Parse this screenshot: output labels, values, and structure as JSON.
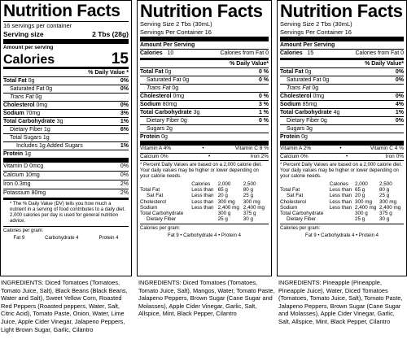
{
  "panel1": {
    "title": "Nutrition Facts",
    "servings": "16 servings per container",
    "serving_size_label": "Serving size",
    "serving_size_value": "2 Tbs (28g)",
    "amount_per_serving": "Amount per serving",
    "calories_label": "Calories",
    "calories_value": "15",
    "dv_header": "% Daily Value *",
    "nutrients": [
      {
        "label": "Total Fat",
        "amount": "0g",
        "dv": "0%",
        "bold": true,
        "indent": 0
      },
      {
        "label": "Saturated Fat",
        "amount": "0g",
        "dv": "0%",
        "bold": false,
        "indent": 1
      },
      {
        "label": "Trans Fat",
        "amount": "0g",
        "dv": "",
        "bold": false,
        "indent": 1,
        "italic": true
      },
      {
        "label": "Cholesterol",
        "amount": "0mg",
        "dv": "0%",
        "bold": true,
        "indent": 0
      },
      {
        "label": "Sodium",
        "amount": "70mg",
        "dv": "3%",
        "bold": true,
        "indent": 0
      },
      {
        "label": "Total Carbohydrate",
        "amount": "3g",
        "dv": "1%",
        "bold": true,
        "indent": 0
      },
      {
        "label": "Dietary Fiber",
        "amount": "1g",
        "dv": "6%",
        "bold": false,
        "indent": 1
      },
      {
        "label": "Total Sugars",
        "amount": "1g",
        "dv": "",
        "bold": false,
        "indent": 1
      },
      {
        "label": "Includes 1g Added Sugars",
        "amount": "",
        "dv": "1%",
        "bold": false,
        "indent": 2
      },
      {
        "label": "Protein",
        "amount": "1g",
        "dv": "",
        "bold": true,
        "indent": 0
      }
    ],
    "vitamins": [
      {
        "label": "Vitamin D",
        "amount": "0mcg",
        "dv": "0%"
      },
      {
        "label": "Calcium",
        "amount": "10mg",
        "dv": "0%"
      },
      {
        "label": "Iron",
        "amount": "0.3mg",
        "dv": "2%"
      },
      {
        "label": "Potassium",
        "amount": "80mg",
        "dv": "2%"
      }
    ],
    "footnote": "* The % Daily Value (DV) tells you how much a nutrient in a serving of food contributes to a daily diet. 2,000 calories per day is used for general nutrition advice.",
    "cal_per_gram_label": "Calories per gram:",
    "cal_per_gram": [
      "Fat 9",
      "Carbohydrate 4",
      "Protein 4"
    ],
    "ingredients_lead": "INGREDIENTS:",
    "ingredients": "Diced Tomatoes (Tomatoes, Tomato Juice, Salt), Black Beans (Black Beans, Water and Salt), Sweet Yellow Corn, Roasted Red Peppers (Roasted peppers, Water, Salt, Citric Acid), Tomato Paste, Onion, Water, Lime Juice, Apple Cider Vinegar, Jalapeno Peppers, Light Brown Sugar, Garlic, Cilantro"
  },
  "panel2": {
    "title": "Nutrition Facts",
    "serving_size": "Serving Size  2  Tbs  (30mL)",
    "servings": "Servings Per Container  16",
    "amount_per_serving": "Amount Per Serving",
    "calories_label": "Calories",
    "calories_value": "10",
    "calories_fat": "Calories from Fat  0",
    "dv_header": "% Daily Value*",
    "nutrients": [
      {
        "label": "Total Fat",
        "amount": "0g",
        "dv": "0 %",
        "bold": true,
        "indent": 0
      },
      {
        "label": "Saturated Fat",
        "amount": "0g",
        "dv": "0 %",
        "bold": false,
        "indent": 1
      },
      {
        "label": "Trans Fat",
        "amount": "0g",
        "dv": "",
        "bold": false,
        "indent": 1,
        "italic": true
      },
      {
        "label": "Cholesterol",
        "amount": "0mg",
        "dv": "0 %",
        "bold": true,
        "indent": 0
      },
      {
        "label": "Sodium",
        "amount": "80mg",
        "dv": "3 %",
        "bold": true,
        "indent": 0
      },
      {
        "label": "Total Carbohydrate",
        "amount": "3g",
        "dv": "1 %",
        "bold": true,
        "indent": 0
      },
      {
        "label": "Dietary Fiber",
        "amount": "0g",
        "dv": "0 %",
        "bold": false,
        "indent": 1
      },
      {
        "label": "Sugars",
        "amount": "2g",
        "dv": "",
        "bold": false,
        "indent": 1
      },
      {
        "label": "Protein",
        "amount": "0g",
        "dv": "",
        "bold": true,
        "indent": 0
      }
    ],
    "vitamins": [
      {
        "left": "Vitamin A  4%",
        "right": "Vitamin C  8 %"
      },
      {
        "left": "Calcium  0%",
        "right": "Iron  2%"
      }
    ],
    "footnote": "* Percent Daily Values are based on a 2,000 calorie diet. Your daily values may be higher or lower depending on your calorie needs.",
    "ref_header": [
      "Calories",
      "2,000",
      "2,500"
    ],
    "ref_rows": [
      [
        "Total Fat",
        "Less than",
        "65 g",
        "80 g"
      ],
      [
        "Sat Fat",
        "Less than",
        "20 g",
        "25 g"
      ],
      [
        "Cholesterol",
        "Less than",
        "300 mg",
        "300 mg"
      ],
      [
        "Sodium",
        "Less than",
        "2,400 mg",
        "2,400 mg"
      ],
      [
        "Total Carbohydrate",
        "",
        "300 g",
        "375 g"
      ],
      [
        "Dietary Fiber",
        "",
        "25 g",
        "30 g"
      ]
    ],
    "cal_per_gram_label": "Calories per gram:",
    "cal_per_gram": "Fat 9   •   Carbohydrate 4   •   Protein 4",
    "ingredients_lead": "INGREDIENTS:",
    "ingredients": "Diced Tomatoes (Tomatoes, Tomato Juice, Salt), Mangos, Water, Tomato Paste, Jalapeno Peppers, Brown Sugar (Cane Sugar and Molasses), Apple Cider Vinegar, Garlic, Salt, Allspice, Mint, Black Pepper, Cilantro"
  },
  "panel3": {
    "title": "Nutrition Facts",
    "serving_size": "Serving Size  2  Tbs  (30mL)",
    "servings": "Servings Per Container  16",
    "amount_per_serving": "Amount Per Serving",
    "calories_label": "Calories",
    "calories_value": "15",
    "calories_fat": "Calories from Fat  0",
    "dv_header": "% Daily Value*",
    "nutrients": [
      {
        "label": "Total Fat",
        "amount": "0g",
        "dv": "0%",
        "bold": true,
        "indent": 0
      },
      {
        "label": "Saturated Fat",
        "amount": "0g",
        "dv": "0%",
        "bold": false,
        "indent": 1
      },
      {
        "label": "Trans Fat",
        "amount": "0g",
        "dv": "",
        "bold": false,
        "indent": 1,
        "italic": true
      },
      {
        "label": "Cholesterol",
        "amount": "0mg",
        "dv": "0%",
        "bold": true,
        "indent": 0
      },
      {
        "label": "Sodium",
        "amount": "85mg",
        "dv": "4%",
        "bold": true,
        "indent": 0
      },
      {
        "label": "Total Carbohydrate",
        "amount": "4g",
        "dv": "1%",
        "bold": true,
        "indent": 0
      },
      {
        "label": "Dietary Fiber",
        "amount": "0g",
        "dv": "0%",
        "bold": false,
        "indent": 1
      },
      {
        "label": "Sugars",
        "amount": "3g",
        "dv": "",
        "bold": false,
        "indent": 1
      },
      {
        "label": "Protein",
        "amount": "0g",
        "dv": "",
        "bold": true,
        "indent": 0
      }
    ],
    "vitamins": [
      {
        "left": "Vitamin A  2%",
        "right": "Vitamin C  4 %"
      },
      {
        "left": "Calcium  0%",
        "right": "Iron  0%"
      }
    ],
    "footnote": "* Percent Daily Values are based on a 2,000 calorie diet. Your daily values may be higher or lower depending on your calorie needs.",
    "ref_header": [
      "Calories",
      "2,000",
      "2,500"
    ],
    "ref_rows": [
      [
        "Total Fat",
        "Less than",
        "65 g",
        "80 g"
      ],
      [
        "Sat Fat",
        "Less than",
        "20 g",
        "25 g"
      ],
      [
        "Cholesterol",
        "Less than",
        "300 mg",
        "300 mg"
      ],
      [
        "Sodium",
        "Less than",
        "2,400 mg",
        "2,400 mg"
      ],
      [
        "Total Carbohydrate",
        "",
        "300 g",
        "375 g"
      ],
      [
        "Dietary Fiber",
        "",
        "25 g",
        "30 g"
      ]
    ],
    "cal_per_gram_label": "Calories per gram:",
    "cal_per_gram": "Fat 9   •   Carbohydrate 4   •   Protein 4",
    "ingredients_lead": "INGREDIENTS:",
    "ingredients": "Pineapple (Pineapple, Pineapple Juice), Water, Diced Tomatoes (Tomatoes, Tomato Juice, Salt), Tomato Paste, Jalapeno Peppers, Brown Sugar (Cane Sugar and Molasses), Apple Cider Vinegar, Garlic, Salt, Allspice, Mint, Black Pepper, Cilantro"
  }
}
